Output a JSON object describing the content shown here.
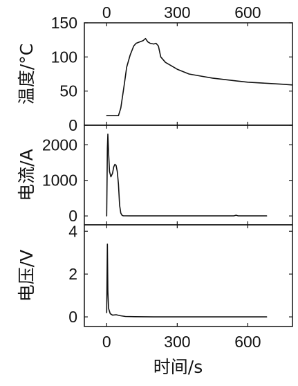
{
  "chart_data": [
    {
      "type": "line",
      "panel": "top",
      "ylabel": "温度/°C",
      "xlim": [
        -95,
        790
      ],
      "ylim": [
        0,
        150
      ],
      "xticks": [
        0,
        300,
        600
      ],
      "xtick_labels": [
        "0",
        "300",
        "600"
      ],
      "yticks": [
        0,
        50,
        100,
        150
      ],
      "ytick_labels": [
        "0",
        "50",
        "100",
        "150"
      ],
      "x_tick_labels_position": "top",
      "series": [
        {
          "x": [
            0,
            50,
            60,
            75,
            85,
            100,
            115,
            125,
            140,
            155,
            165,
            175,
            185,
            200,
            210,
            220,
            230,
            250,
            280,
            300,
            350,
            400,
            450,
            500,
            550,
            600,
            650,
            700,
            750,
            790
          ],
          "y": [
            14,
            14,
            25,
            60,
            85,
            103,
            116,
            120,
            122,
            124,
            127,
            122,
            120,
            119,
            120,
            116,
            100,
            92,
            86,
            82,
            75,
            72,
            69,
            67,
            65,
            63,
            62,
            61,
            60,
            59
          ]
        }
      ]
    },
    {
      "type": "line",
      "panel": "middle",
      "ylabel": "电流/A",
      "xlim": [
        -95,
        790
      ],
      "ylim": [
        -250,
        2550
      ],
      "xticks": [
        0,
        300,
        600
      ],
      "yticks": [
        0,
        1000,
        2000
      ],
      "ytick_labels": [
        "0",
        "1000",
        "2000"
      ],
      "series": [
        {
          "x": [
            0,
            3,
            5,
            8,
            12,
            18,
            25,
            30,
            35,
            40,
            45,
            50,
            55,
            60,
            65,
            70,
            80,
            100,
            200,
            300,
            400,
            500,
            540,
            550,
            560,
            600,
            680
          ],
          "y": [
            0,
            1900,
            2300,
            1800,
            1250,
            1100,
            1200,
            1380,
            1450,
            1420,
            1250,
            900,
            300,
            80,
            20,
            5,
            2,
            0,
            0,
            0,
            0,
            0,
            0,
            20,
            0,
            0,
            0
          ]
        }
      ]
    },
    {
      "type": "line",
      "panel": "bottom",
      "xlabel": "时间/s",
      "ylabel": "电压/V",
      "xlim": [
        -95,
        790
      ],
      "ylim": [
        -0.45,
        4.3
      ],
      "xticks": [
        0,
        300,
        600
      ],
      "xtick_labels": [
        "0",
        "300",
        "600"
      ],
      "yticks": [
        0,
        2,
        4
      ],
      "ytick_labels": [
        "0",
        "2",
        "4"
      ],
      "series": [
        {
          "x": [
            0,
            3,
            5,
            8,
            15,
            25,
            40,
            60,
            80,
            120,
            200,
            400,
            680
          ],
          "y": [
            0.2,
            3.4,
            1.2,
            0.4,
            0.15,
            0.08,
            0.1,
            0.05,
            0.02,
            0.01,
            0,
            0,
            0
          ]
        }
      ]
    }
  ]
}
